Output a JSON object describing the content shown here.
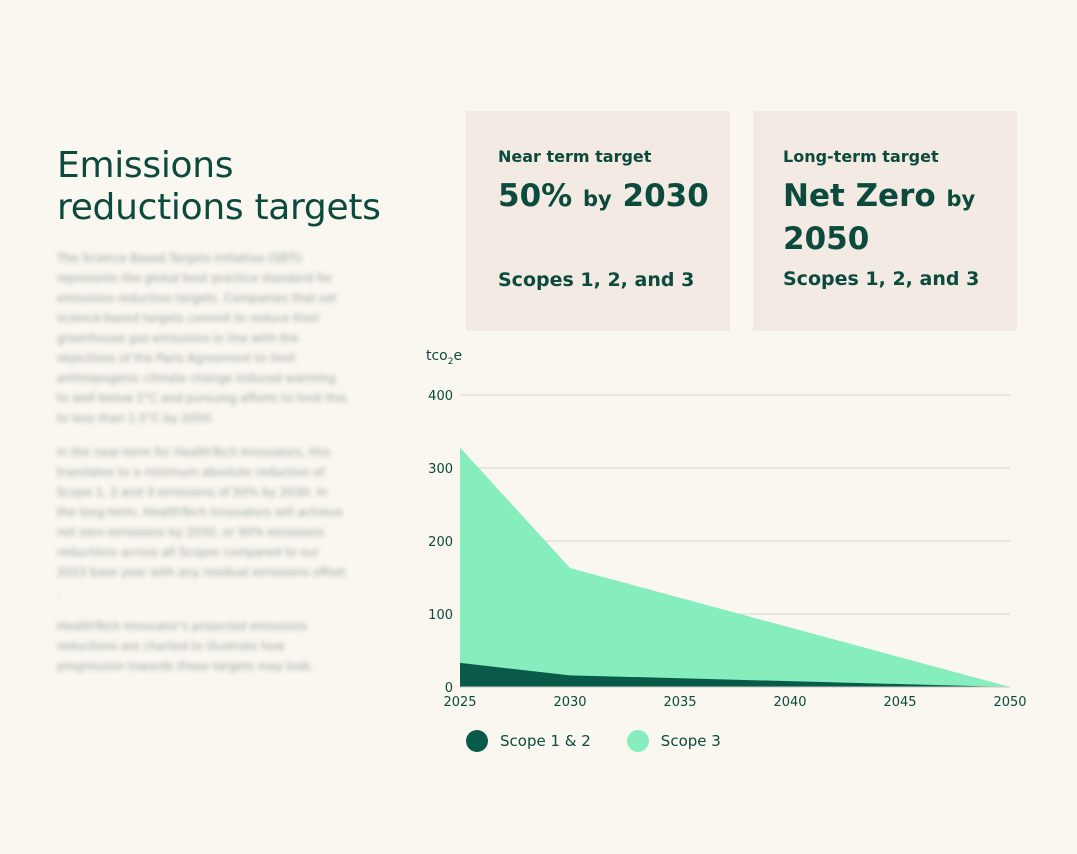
{
  "heading": {
    "title": "Emissions reductions targets",
    "paragraphs": [
      "The Science Based Targets initiative (SBTi) represents the global best practice standard for emissions reduction targets. Companies that set science-based targets commit to reduce their greenhouse gas emissions in line with the objectives of the Paris Agreement to limit anthropogenic climate change induced warming to well below 2°C and pursuing efforts to limit this to less than 1.5°C by 2050.",
      "In the near-term for HealthTech Innovators, this translates to a minimum absolute reduction of Scope 1, 2 and 3 emissions of 50% by 2030. In the long-term, HealthTech Innovators will achieve net zero emissions by 2050, or 90% emissions reductions across all Scopes compared to our 2023 base year with any residual emissions offset .",
      "HealthTech Innovator's projected emissions reductions are charted to illustrate how progression towards these targets may look."
    ]
  },
  "cards": [
    {
      "label": "Near term target",
      "headline_main": "50%",
      "headline_small": "by",
      "headline_end": "2030",
      "scope": "Scopes 1, 2, and 3"
    },
    {
      "label": "Long-term target",
      "headline_main": "Net Zero",
      "headline_small": "by",
      "headline_end": "2050",
      "scope": "Scopes 1, 2, and 3"
    }
  ],
  "unit": {
    "base": "tco",
    "sub": "2",
    "suffix": "e"
  },
  "chart_data": {
    "type": "area",
    "stacked": true,
    "x": [
      2025,
      2030,
      2050
    ],
    "xticks": [
      "2025",
      "2030",
      "2035",
      "2040",
      "2045",
      "2050"
    ],
    "yticks": [
      "0",
      "100",
      "200",
      "300",
      "400"
    ],
    "xlim": [
      2025,
      2050
    ],
    "ylim": [
      0,
      400
    ],
    "grid": true,
    "legend_position": "bottom-left",
    "series": [
      {
        "name": "Scope 1 & 2",
        "values": [
          33,
          16,
          0
        ],
        "color": "#0a5a4a"
      },
      {
        "name": "Scope 3",
        "values": [
          295,
          147,
          0
        ],
        "color": "#86eebd"
      }
    ]
  }
}
